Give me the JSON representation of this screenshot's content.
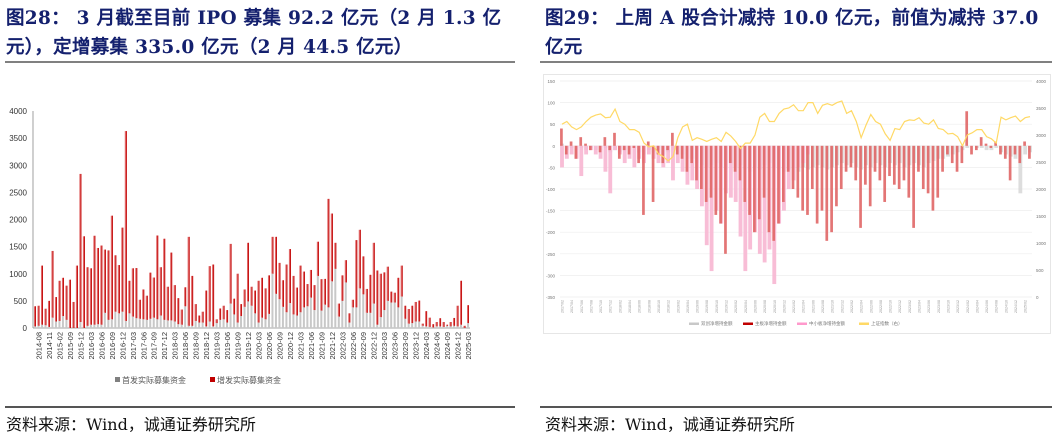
{
  "left": {
    "title": "图28：  3 月截至目前 IPO 募集 92.2 亿元（2 月 1.3 亿元），定增募集 335.0 亿元（2 月 44.5 亿元）",
    "source": "资料来源：Wind，诚通证券研究所"
  },
  "right": {
    "title": "图29：  上周 A 股合计减持 10.0 亿元，前值为减持 37.0 亿元",
    "source": "资料来源：Wind，诚通证券研究所"
  },
  "chart_data": [
    {
      "type": "bar",
      "stacked": true,
      "ylim": [
        0,
        4000
      ],
      "yticks": [
        0,
        500,
        1000,
        1500,
        2000,
        2500,
        3000,
        3500,
        4000
      ],
      "grid": false,
      "legend": "bottom",
      "categories": [
        "2014-07",
        "2014-08",
        "2014-09",
        "2014-10",
        "2014-11",
        "2014-12",
        "2015-01",
        "2015-02",
        "2015-03",
        "2015-04",
        "2015-09",
        "2015-10",
        "2015-11",
        "2015-12",
        "2016-01",
        "2016-02",
        "2016-03",
        "2016-04",
        "2016-05",
        "2016-06",
        "2016-07",
        "2016-08",
        "2016-09",
        "2016-10",
        "2016-11",
        "2016-12",
        "2017-01",
        "2017-02",
        "2017-03",
        "2017-04",
        "2017-05",
        "2017-06",
        "2017-07",
        "2017-08",
        "2017-09",
        "2017-10",
        "2017-11",
        "2017-12",
        "2018-01",
        "2018-02",
        "2018-03",
        "2018-04",
        "2018-05",
        "2018-06",
        "2018-07",
        "2018-08",
        "2018-09",
        "2018-10",
        "2018-11",
        "2018-12",
        "2019-01",
        "2019-02",
        "2019-03",
        "2019-04",
        "2019-05",
        "2019-06",
        "2019-07",
        "2019-08",
        "2019-09",
        "2019-10",
        "2019-11",
        "2019-12",
        "2020-01",
        "2020-02",
        "2020-03",
        "2020-04",
        "2020-05",
        "2020-06",
        "2020-07",
        "2020-08",
        "2020-09",
        "2020-10",
        "2020-11",
        "2020-12",
        "2021-01",
        "2021-02",
        "2021-03",
        "2021-04",
        "2021-05",
        "2021-06",
        "2021-07",
        "2021-08",
        "2021-09",
        "2021-10",
        "2021-11",
        "2021-12",
        "2022-01",
        "2022-02",
        "2022-03",
        "2022-04",
        "2022-05",
        "2022-06",
        "2022-07",
        "2022-08",
        "2022-09",
        "2022-10",
        "2022-11",
        "2022-12",
        "2023-01",
        "2023-02",
        "2023-03",
        "2023-04",
        "2023-05",
        "2023-06",
        "2023-07",
        "2023-08",
        "2023-09",
        "2023-10",
        "2023-11",
        "2023-12",
        "2024-01",
        "2024-02",
        "2024-03",
        "2024-04",
        "2024-05",
        "2024-06",
        "2024-07",
        "2024-08",
        "2024-09",
        "2024-10",
        "2024-11",
        "2024-12",
        "2025-01",
        "2025-02",
        "2025-03"
      ],
      "series": [
        {
          "name": "首发实际募集资金",
          "color": "#a6a6a6",
          "values": [
            30,
            40,
            60,
            50,
            20,
            190,
            120,
            130,
            220,
            150,
            0,
            0,
            0,
            110,
            0,
            40,
            60,
            60,
            70,
            60,
            280,
            150,
            160,
            300,
            270,
            300,
            130,
            270,
            210,
            180,
            170,
            160,
            150,
            170,
            190,
            160,
            230,
            150,
            140,
            140,
            120,
            70,
            60,
            400,
            40,
            40,
            130,
            100,
            100,
            30,
            120,
            30,
            90,
            150,
            160,
            100,
            450,
            250,
            100,
            220,
            390,
            490,
            410,
            270,
            100,
            190,
            160,
            260,
            1000,
            630,
            530,
            390,
            290,
            460,
            250,
            230,
            290,
            380,
            400,
            560,
            330,
            960,
            320,
            430,
            380,
            860,
            1090,
            210,
            500,
            840,
            100,
            380,
            380,
            730,
            620,
            280,
            280,
            450,
            60,
            200,
            330,
            500,
            470,
            470,
            380,
            580,
            170,
            80,
            90,
            120,
            120,
            40,
            30,
            20,
            10,
            30,
            30,
            20,
            40,
            30,
            40,
            30,
            60,
            0,
            90
          ]
        },
        {
          "name": "增发实际募集资金",
          "color": "#c00000",
          "totals_note_excluded": true,
          "values": [
            370,
            370,
            1090,
            305,
            480,
            1230,
            450,
            740,
            705,
            630,
            890,
            480,
            1150,
            2730,
            1690,
            1080,
            1040,
            1640,
            1405,
            1460,
            1165,
            1280,
            1910,
            1040,
            890,
            1550,
            3500,
            600,
            890,
            925,
            350,
            550,
            445,
            850,
            740,
            1545,
            890,
            1495,
            620,
            1250,
            670,
            480,
            280,
            350,
            1640,
            920,
            310,
            130,
            200,
            660,
            1020,
            1140,
            70,
            210,
            250,
            230,
            1100,
            290,
            900,
            220,
            320,
            1080,
            350,
            420,
            770,
            735,
            570,
            710,
            680,
            1050,
            670,
            490,
            880,
            995,
            710,
            515,
            860,
            660,
            410,
            510,
            460,
            630,
            580,
            475,
            2000,
            1250,
            480,
            240,
            470,
            410,
            170,
            140,
            1240,
            1080,
            700,
            440,
            700,
            1120,
            1000,
            800,
            695,
            630,
            200,
            180,
            545,
            570,
            240,
            270,
            320,
            360,
            385,
            40,
            280,
            170,
            60,
            80,
            150,
            90,
            20,
            80,
            145,
            380,
            810,
            40,
            330
          ]
        }
      ]
    },
    {
      "type": "bar+line",
      "ylim": [
        -350,
        150
      ],
      "yticks": [
        -350,
        -300,
        -250,
        -200,
        -150,
        -100,
        -50,
        0,
        50,
        100,
        150
      ],
      "y2lim": [
        0,
        4000
      ],
      "y2ticks": [
        0,
        500,
        1000,
        1500,
        2000,
        2500,
        3000,
        3500,
        4000
      ],
      "grid": true,
      "legend": "bottom",
      "x": [
        "2017/02",
        "2017/03",
        "2017/04",
        "2017/05",
        "2017/06",
        "2017/07",
        "2017/08",
        "2017/09",
        "2017/10",
        "2017/11",
        "2017/12",
        "2018/01",
        "2018/02",
        "2018/03",
        "2018/04",
        "2018/05",
        "2018/06",
        "2018/07",
        "2018/08",
        "2018/09",
        "2018/10",
        "2018/11",
        "2018/12",
        "2019/01",
        "2019/02",
        "2019/03",
        "2019/04",
        "2019/05",
        "2019/06",
        "2019/07",
        "2019/08",
        "2019/09",
        "2019/10",
        "2019/11",
        "2019/12",
        "2020/01",
        "2020/02",
        "2020/03",
        "2020/04",
        "2020/05",
        "2020/06",
        "2020/07",
        "2020/08",
        "2020/09",
        "2020/10",
        "2020/11",
        "2020/12",
        "2021/01",
        "2021/02",
        "2021/03",
        "2021/04",
        "2021/05",
        "2021/06",
        "2021/07",
        "2021/08",
        "2021/09",
        "2021/10",
        "2021/11",
        "2021/12",
        "2022/01",
        "2022/02",
        "2022/03",
        "2022/04",
        "2022/05",
        "2022/06",
        "2022/07",
        "2022/08",
        "2022/09",
        "2022/10",
        "2022/11",
        "2022/12",
        "2023/01",
        "2023/02",
        "2023/03",
        "2023/04",
        "2023/05",
        "2023/06",
        "2023/07",
        "2023/08",
        "2023/09",
        "2023/10",
        "2023/11",
        "2023/12",
        "2024/01",
        "2024/02",
        "2024/03",
        "2024/04",
        "2024/05",
        "2024/06",
        "2024/07",
        "2024/08",
        "2024/09",
        "2024/10",
        "2024/11",
        "2024/12",
        "2025/01",
        "2025/02",
        "2025/03"
      ],
      "series": [
        {
          "name": "双创净增持金额",
          "type": "bar",
          "axis": "left",
          "color": "#d9d9d9",
          "values": [
            5,
            -10,
            -5,
            -10,
            -5,
            -10,
            -5,
            -10,
            -10,
            -5,
            -15,
            -10,
            -15,
            -10,
            -10,
            -5,
            -15,
            -20,
            -10,
            -15,
            -10,
            -20,
            -15,
            -10,
            0,
            -20,
            -30,
            -30,
            -40,
            -45,
            -50,
            -45,
            -40,
            -50,
            -55,
            -40,
            -50,
            -45,
            -55,
            -60,
            -50,
            -55,
            -45,
            -40,
            -50,
            -55,
            -60,
            -55,
            -50,
            -60,
            -50,
            -55,
            -50,
            -45,
            -50,
            -55,
            -50,
            -45,
            -40,
            -45,
            -40,
            -50,
            -55,
            -45,
            -50,
            -40,
            -45,
            -50,
            -40,
            -45,
            -40,
            -50,
            -45,
            -40,
            -45,
            -50,
            -40,
            -35,
            -30,
            -30,
            -25,
            -20,
            -15,
            -10,
            -5,
            0,
            -5,
            -5,
            -10,
            -10,
            -5,
            -15,
            -20,
            -25,
            -30,
            -110,
            -20,
            -15
          ]
        },
        {
          "name": "中小板净增持金额",
          "type": "bar",
          "axis": "left",
          "color": "#ff99cc",
          "values": [
            -50,
            -30,
            -20,
            -30,
            -70,
            -20,
            -10,
            -20,
            -30,
            -60,
            -110,
            -10,
            -20,
            -40,
            -30,
            -50,
            -30,
            -40,
            -20,
            -30,
            -40,
            -50,
            -40,
            -80,
            -40,
            -60,
            -90,
            -80,
            -100,
            -140,
            -230,
            -290,
            -150,
            -180,
            -110,
            -120,
            -130,
            -210,
            -290,
            -240,
            -200,
            -250,
            -270,
            -240,
            -320,
            -180,
            -150,
            -100,
            -80,
            -50,
            -40,
            -20,
            0,
            0,
            0,
            0,
            0,
            0,
            0,
            0,
            0,
            0,
            0,
            0,
            0,
            0,
            0,
            0,
            0,
            0,
            0,
            0,
            0,
            0,
            0,
            0,
            0,
            0,
            0,
            0,
            0,
            0,
            0,
            0,
            0,
            0,
            0,
            0,
            0,
            0,
            0,
            0,
            0,
            0,
            0,
            0,
            0,
            0
          ]
        },
        {
          "name": "主板净增持金额",
          "type": "bar",
          "axis": "left",
          "color": "#c00000",
          "values": [
            40,
            -20,
            10,
            -30,
            20,
            5,
            -10,
            0,
            -15,
            20,
            -10,
            30,
            -30,
            -10,
            -20,
            -5,
            -40,
            -160,
            10,
            -130,
            -20,
            -40,
            -10,
            30,
            -20,
            -30,
            -60,
            -40,
            -80,
            -100,
            -130,
            -120,
            -160,
            -180,
            -250,
            -40,
            -60,
            -80,
            -130,
            -160,
            -200,
            -170,
            -120,
            -200,
            -220,
            -180,
            -130,
            -60,
            -100,
            -120,
            -150,
            -160,
            -100,
            -180,
            -150,
            -220,
            -200,
            -140,
            -100,
            -60,
            -50,
            -80,
            -190,
            -90,
            -140,
            -60,
            -80,
            -130,
            -70,
            -90,
            -100,
            -80,
            -120,
            -190,
            -60,
            -100,
            -110,
            -150,
            -120,
            -60,
            -20,
            -40,
            -60,
            -40,
            80,
            -20,
            -10,
            20,
            5,
            -5,
            10,
            -20,
            -30,
            -80,
            -20,
            -40,
            10,
            -30
          ]
        },
        {
          "name": "上证指数（右）",
          "type": "line",
          "axis": "right",
          "color": "#ffc000",
          "values": [
            3200,
            3250,
            3150,
            3100,
            3150,
            3250,
            3330,
            3370,
            3390,
            3320,
            3330,
            3480,
            3250,
            3200,
            3100,
            3100,
            3050,
            2850,
            2780,
            2800,
            2650,
            2600,
            2520,
            2600,
            2950,
            3150,
            3200,
            2900,
            2950,
            2920,
            2880,
            2920,
            2950,
            2880,
            3050,
            2980,
            2880,
            2750,
            2850,
            2850,
            3000,
            3330,
            3400,
            3250,
            3250,
            3400,
            3480,
            3500,
            3560,
            3450,
            3450,
            3600,
            3600,
            3400,
            3550,
            3580,
            3550,
            3600,
            3630,
            3400,
            3450,
            3250,
            2950,
            3180,
            3380,
            3250,
            3200,
            3020,
            2900,
            3120,
            3100,
            3250,
            3280,
            3270,
            3320,
            3220,
            3200,
            3280,
            3120,
            3100,
            3020,
            3030,
            2970,
            2800,
            3000,
            3040,
            3100,
            3100,
            2970,
            2930,
            2850,
            3330,
            3280,
            3320,
            3350,
            3250,
            3320,
            3340
          ]
        }
      ]
    }
  ]
}
